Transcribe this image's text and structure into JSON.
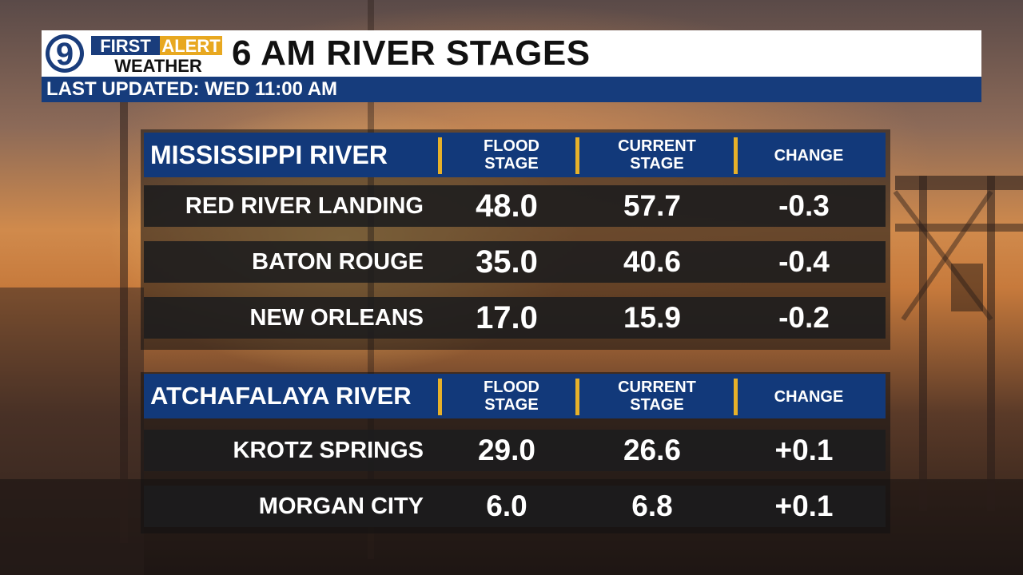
{
  "brand": {
    "channel_number": "9",
    "logo_line1_a": "FIRST",
    "logo_line1_b": "ALERT",
    "logo_line2": "WEATHER",
    "colors": {
      "logo_blue": "#1a3d7c",
      "logo_gold": "#e8a820",
      "bar_blue": "#163c7c",
      "divider_gold": "#e7b12a"
    }
  },
  "header": {
    "title": "6 AM RIVER STAGES",
    "last_updated": "LAST UPDATED: WED  11:00 AM"
  },
  "sections": [
    {
      "river": "MISSISSIPPI RIVER",
      "col_flood_1": "FLOOD",
      "col_flood_2": "STAGE",
      "col_current_1": "CURRENT",
      "col_current_2": "STAGE",
      "col_change": "CHANGE",
      "rows": [
        {
          "station": "RED RIVER LANDING",
          "flood": "48.0",
          "current": "57.7",
          "change": "-0.3"
        },
        {
          "station": "BATON ROUGE",
          "flood": "35.0",
          "current": "40.6",
          "change": "-0.4"
        },
        {
          "station": "NEW ORLEANS",
          "flood": "17.0",
          "current": "15.9",
          "change": "-0.2"
        }
      ]
    },
    {
      "river": "ATCHAFALAYA RIVER",
      "col_flood_1": "FLOOD",
      "col_flood_2": "STAGE",
      "col_current_1": "CURRENT",
      "col_current_2": "STAGE",
      "col_change": "CHANGE",
      "rows": [
        {
          "station": "KROTZ SPRINGS",
          "flood": "29.0",
          "current": "26.6",
          "change": "+0.1"
        },
        {
          "station": "MORGAN CITY",
          "flood": "6.0",
          "current": "6.8",
          "change": "+0.1"
        }
      ]
    }
  ]
}
